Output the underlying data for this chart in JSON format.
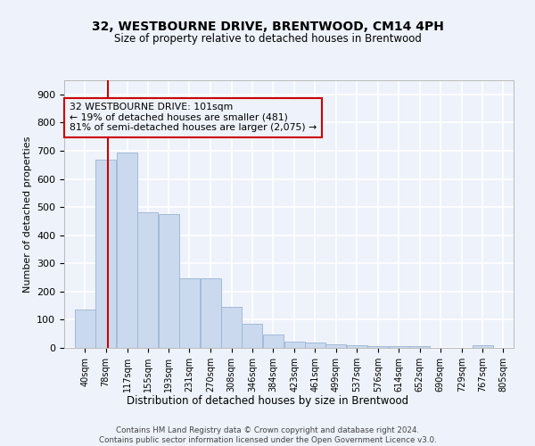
{
  "title": "32, WESTBOURNE DRIVE, BRENTWOOD, CM14 4PH",
  "subtitle": "Size of property relative to detached houses in Brentwood",
  "xlabel": "Distribution of detached houses by size in Brentwood",
  "ylabel": "Number of detached properties",
  "bar_values": [
    137,
    667,
    693,
    481,
    476,
    246,
    246,
    147,
    86,
    48,
    22,
    18,
    12,
    8,
    6,
    7,
    5,
    1,
    0,
    8,
    0
  ],
  "bin_edges": [
    40,
    78,
    117,
    155,
    193,
    231,
    270,
    308,
    346,
    384,
    423,
    461,
    499,
    537,
    576,
    614,
    652,
    690,
    729,
    767,
    805
  ],
  "tick_labels": [
    "40sqm",
    "78sqm",
    "117sqm",
    "155sqm",
    "193sqm",
    "231sqm",
    "270sqm",
    "308sqm",
    "346sqm",
    "384sqm",
    "423sqm",
    "461sqm",
    "499sqm",
    "537sqm",
    "576sqm",
    "614sqm",
    "652sqm",
    "690sqm",
    "729sqm",
    "767sqm",
    "805sqm"
  ],
  "bar_color": "#cad9ed",
  "bar_edge_color": "#9ab4d4",
  "vline_x": 101,
  "vline_color": "#cc0000",
  "yticks": [
    0,
    100,
    200,
    300,
    400,
    500,
    600,
    700,
    800,
    900
  ],
  "ylim": [
    0,
    950
  ],
  "annotation_text": "32 WESTBOURNE DRIVE: 101sqm\n← 19% of detached houses are smaller (481)\n81% of semi-detached houses are larger (2,075) →",
  "annotation_box_color": "#cc0000",
  "footer_text": "Contains HM Land Registry data © Crown copyright and database right 2024.\nContains public sector information licensed under the Open Government Licence v3.0.",
  "background_color": "#eef2fa",
  "grid_color": "#ffffff",
  "fig_width": 6.0,
  "fig_height": 5.0
}
